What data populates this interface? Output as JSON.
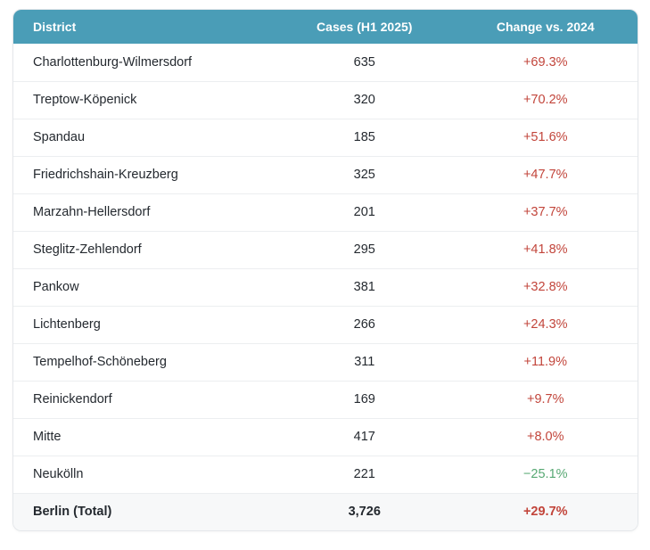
{
  "colors": {
    "header_bg": "#4a9db7",
    "header_text": "#ffffff",
    "row_text": "#24292f",
    "positive_change": "#c2453b",
    "negative_change": "#57a873",
    "total_row_bg": "#f7f8f9",
    "divider": "#eceef0",
    "card_border": "#e4e7ea"
  },
  "table": {
    "headers": {
      "district": "District",
      "cases": "Cases (H1 2025)",
      "change": "Change vs. 2024"
    },
    "rows": [
      {
        "district": "Charlottenburg-Wilmersdorf",
        "cases": "635",
        "change": "+69.3%",
        "trend": "up"
      },
      {
        "district": "Treptow-Köpenick",
        "cases": "320",
        "change": "+70.2%",
        "trend": "up"
      },
      {
        "district": "Spandau",
        "cases": "185",
        "change": "+51.6%",
        "trend": "up"
      },
      {
        "district": "Friedrichshain-Kreuzberg",
        "cases": "325",
        "change": "+47.7%",
        "trend": "up"
      },
      {
        "district": "Marzahn-Hellersdorf",
        "cases": "201",
        "change": "+37.7%",
        "trend": "up"
      },
      {
        "district": "Steglitz-Zehlendorf",
        "cases": "295",
        "change": "+41.8%",
        "trend": "up"
      },
      {
        "district": "Pankow",
        "cases": "381",
        "change": "+32.8%",
        "trend": "up"
      },
      {
        "district": "Lichtenberg",
        "cases": "266",
        "change": "+24.3%",
        "trend": "up"
      },
      {
        "district": "Tempelhof-Schöneberg",
        "cases": "311",
        "change": "+11.9%",
        "trend": "up"
      },
      {
        "district": "Reinickendorf",
        "cases": "169",
        "change": "+9.7%",
        "trend": "up"
      },
      {
        "district": "Mitte",
        "cases": "417",
        "change": "+8.0%",
        "trend": "up"
      },
      {
        "district": "Neukölln",
        "cases": "221",
        "change": "−25.1%",
        "trend": "down"
      }
    ],
    "total": {
      "district": "Berlin (Total)",
      "cases": "3,726",
      "change": "+29.7%",
      "trend": "up"
    }
  },
  "chart_data": {
    "type": "table",
    "title": "",
    "columns": [
      "District",
      "Cases (H1 2025)",
      "Change vs. 2024"
    ],
    "rows": [
      [
        "Charlottenburg-Wilmersdorf",
        635,
        "+69.3%"
      ],
      [
        "Treptow-Köpenick",
        320,
        "+70.2%"
      ],
      [
        "Spandau",
        185,
        "+51.6%"
      ],
      [
        "Friedrichshain-Kreuzberg",
        325,
        "+47.7%"
      ],
      [
        "Marzahn-Hellersdorf",
        201,
        "+37.7%"
      ],
      [
        "Steglitz-Zehlendorf",
        295,
        "+41.8%"
      ],
      [
        "Pankow",
        381,
        "+32.8%"
      ],
      [
        "Lichtenberg",
        266,
        "+24.3%"
      ],
      [
        "Tempelhof-Schöneberg",
        311,
        "+11.9%"
      ],
      [
        "Reinickendorf",
        169,
        "+9.7%"
      ],
      [
        "Mitte",
        417,
        "+8.0%"
      ],
      [
        "Neukölln",
        221,
        "−25.1%"
      ],
      [
        "Berlin (Total)",
        3726,
        "+29.7%"
      ]
    ]
  }
}
